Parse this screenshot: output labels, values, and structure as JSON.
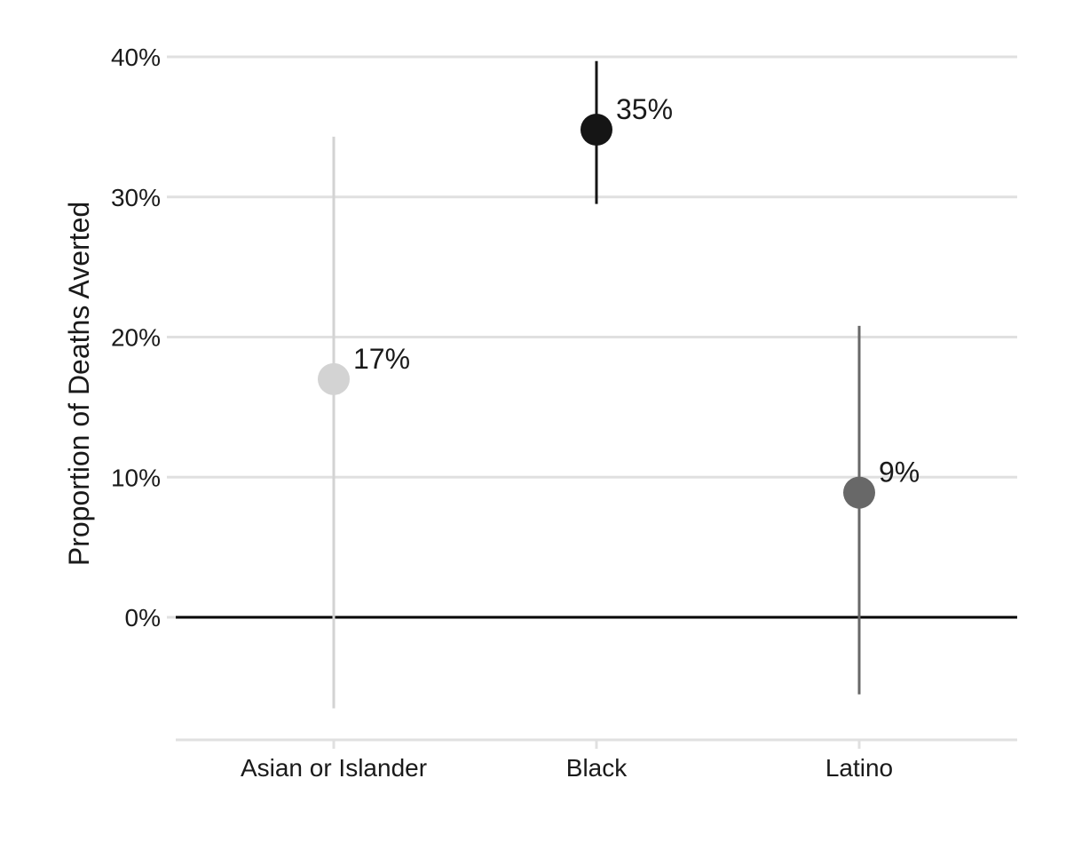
{
  "chart_data": {
    "type": "scatter",
    "ylabel": "Proportion of Deaths Averted",
    "xlabel": "",
    "ylim": [
      -0.088,
      0.4
    ],
    "yticks": [
      0,
      0.1,
      0.2,
      0.3,
      0.4
    ],
    "ytick_labels": [
      "0%",
      "10%",
      "20%",
      "30%",
      "40%"
    ],
    "grid": true,
    "legend": "none",
    "categories": [
      "Asian or Islander",
      "Black",
      "Latino"
    ],
    "points": [
      {
        "category": "Asian or Islander",
        "value": 0.17,
        "lower": -0.065,
        "upper": 0.343,
        "label": "17%",
        "color": "#d3d3d3"
      },
      {
        "category": "Black",
        "value": 0.348,
        "lower": 0.295,
        "upper": 0.397,
        "label": "35%",
        "color": "#151515"
      },
      {
        "category": "Latino",
        "value": 0.089,
        "lower": -0.055,
        "upper": 0.208,
        "label": "9%",
        "color": "#686868"
      }
    ],
    "reference_line": 0
  }
}
